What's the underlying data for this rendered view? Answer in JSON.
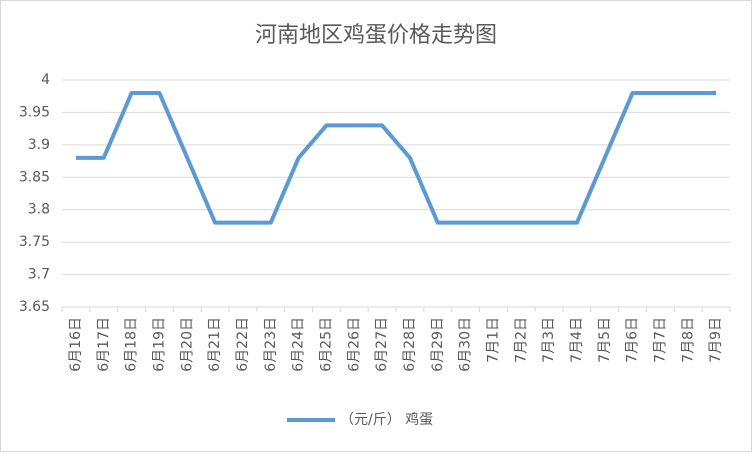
{
  "chart_data": {
    "type": "line",
    "title": "河南地区鸡蛋价格走势图",
    "categories": [
      "6月16日",
      "6月17日",
      "6月18日",
      "6月19日",
      "6月20日",
      "6月21日",
      "6月22日",
      "6月23日",
      "6月24日",
      "6月25日",
      "6月26日",
      "6月27日",
      "6月28日",
      "6月29日",
      "6月30日",
      "7月1日",
      "7月2日",
      "7月3日",
      "7月4日",
      "7月5日",
      "7月6日",
      "7月7日",
      "7月8日",
      "7月9日"
    ],
    "series": [
      {
        "name": "（元/斤） 鸡蛋",
        "color": "#5b9bd5",
        "values": [
          3.88,
          3.88,
          3.98,
          3.98,
          3.88,
          3.78,
          3.78,
          3.78,
          3.88,
          3.93,
          3.93,
          3.93,
          3.88,
          3.78,
          3.78,
          3.78,
          3.78,
          3.78,
          3.78,
          3.88,
          3.98,
          3.98,
          3.98,
          3.98
        ]
      }
    ],
    "ylim": [
      3.65,
      4
    ],
    "yticks": [
      3.65,
      3.7,
      3.75,
      3.8,
      3.85,
      3.9,
      3.95,
      4
    ],
    "grid": true,
    "legend": "bottom"
  }
}
